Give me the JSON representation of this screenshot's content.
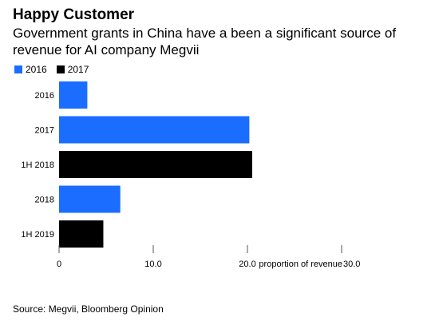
{
  "title": "Happy Customer",
  "subtitle": "Government grants in China have a been a significant source of revenue for AI company Megvii",
  "source": "Source: Megvii, Bloomberg Opinion",
  "colors": {
    "2016": "#1a6dff",
    "2017": "#000000",
    "axis": "#555555"
  },
  "chart_data": {
    "type": "bar",
    "orientation": "horizontal",
    "categories": [
      "2016",
      "2017",
      "1H 2018",
      "2018",
      "1H 2019"
    ],
    "values": [
      3.0,
      20.2,
      20.5,
      6.5,
      4.7
    ],
    "bar_series": [
      "2016",
      "2016",
      "2017",
      "2016",
      "2017"
    ],
    "legend": [
      {
        "name": "2016",
        "color": "#1a6dff"
      },
      {
        "name": "2017",
        "color": "#000000"
      }
    ],
    "xticks": [
      {
        "value": 0,
        "label": "0"
      },
      {
        "value": 10,
        "label": "10.0"
      },
      {
        "value": 20,
        "label": "20.0"
      },
      {
        "value": 30,
        "label": "30.0"
      }
    ],
    "xlabel": "proportion of revenue",
    "xlim": [
      0,
      30
    ],
    "grid": false,
    "legend_position": "top-left"
  }
}
